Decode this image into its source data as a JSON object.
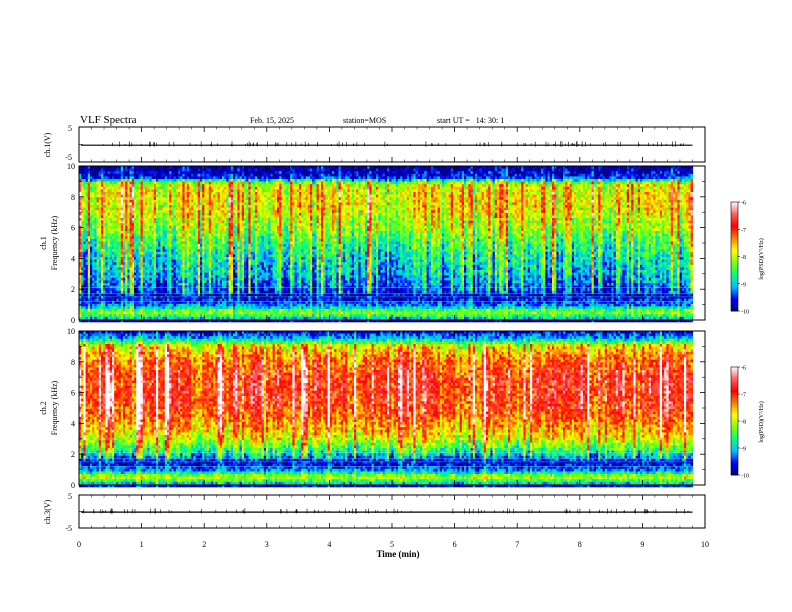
{
  "header": {
    "title": "VLF Spectra",
    "date": "Feb. 15, 2025",
    "station": "station=MOS",
    "start": "start UT =   14: 30: 1"
  },
  "chart_data": [
    {
      "type": "line",
      "ylabel": "ch.1(V)",
      "ylim": [
        -5,
        5
      ],
      "y_ticks": [
        "5",
        "-5"
      ],
      "series": [
        {
          "values": [
            -0.2,
            -0.2
          ]
        }
      ]
    },
    {
      "type": "heatmap",
      "ylabel_line1": "ch.1",
      "ylabel_line2": "Frequency (kHz)",
      "ylim": [
        0,
        10
      ],
      "y_ticks": [
        "0",
        "2",
        "4",
        "6",
        "8",
        "10"
      ],
      "intensity_profile_log_psd": [
        [
          0.0,
          -9.3
        ],
        [
          0.5,
          -8.2
        ],
        [
          1.0,
          -9.4
        ],
        [
          1.5,
          -9.8
        ],
        [
          2.0,
          -9.6
        ],
        [
          3.0,
          -9.2
        ],
        [
          4.0,
          -9.0
        ],
        [
          5.0,
          -8.7
        ],
        [
          6.0,
          -8.3
        ],
        [
          7.0,
          -8.0
        ],
        [
          8.0,
          -7.9
        ],
        [
          8.8,
          -8.1
        ],
        [
          9.3,
          -9.7
        ],
        [
          10.0,
          -10.0
        ]
      ]
    },
    {
      "type": "heatmap",
      "ylabel_line1": "ch.2",
      "ylabel_line2": "Frequency (kHz)",
      "ylim": [
        0,
        10
      ],
      "y_ticks": [
        "0",
        "2",
        "4",
        "6",
        "8",
        "10"
      ],
      "intensity_profile_log_psd": [
        [
          0.0,
          -9.3
        ],
        [
          0.5,
          -8.0
        ],
        [
          1.0,
          -9.4
        ],
        [
          1.5,
          -9.8
        ],
        [
          2.0,
          -9.0
        ],
        [
          3.0,
          -8.0
        ],
        [
          4.0,
          -7.5
        ],
        [
          5.0,
          -7.1
        ],
        [
          6.0,
          -7.0
        ],
        [
          7.0,
          -7.0
        ],
        [
          8.0,
          -7.3
        ],
        [
          9.0,
          -7.9
        ],
        [
          9.6,
          -9.3
        ],
        [
          10.0,
          -9.8
        ]
      ]
    },
    {
      "type": "line",
      "ylabel": "ch.3(V)",
      "ylim": [
        -5,
        5
      ],
      "y_ticks": [
        "5",
        "-5"
      ],
      "series": [
        {
          "values": [
            -0.2,
            -0.2
          ]
        }
      ]
    }
  ],
  "x_axis": {
    "label": "Time (min)",
    "range": [
      0,
      10
    ],
    "data_end": 9.8,
    "ticks": [
      "0",
      "1",
      "2",
      "3",
      "4",
      "5",
      "6",
      "7",
      "8",
      "9",
      "10"
    ]
  },
  "colorbars": [
    {
      "label": "log(PSD)(V²/Hz)",
      "range": [
        -10,
        -6
      ],
      "ticks": [
        "-6",
        "-7",
        "-8",
        "-9",
        "-10"
      ]
    },
    {
      "label": "log(PSD)(V²/Hz)",
      "range": [
        -10,
        -6
      ],
      "ticks": [
        "-6",
        "-7",
        "-8",
        "-9",
        "-10"
      ]
    }
  ],
  "colormap": [
    "#000080",
    "#0000ff",
    "#00c0ff",
    "#00ff80",
    "#80ff00",
    "#ffff00",
    "#ff8000",
    "#ff0000",
    "#ff6060",
    "#ffffff"
  ]
}
